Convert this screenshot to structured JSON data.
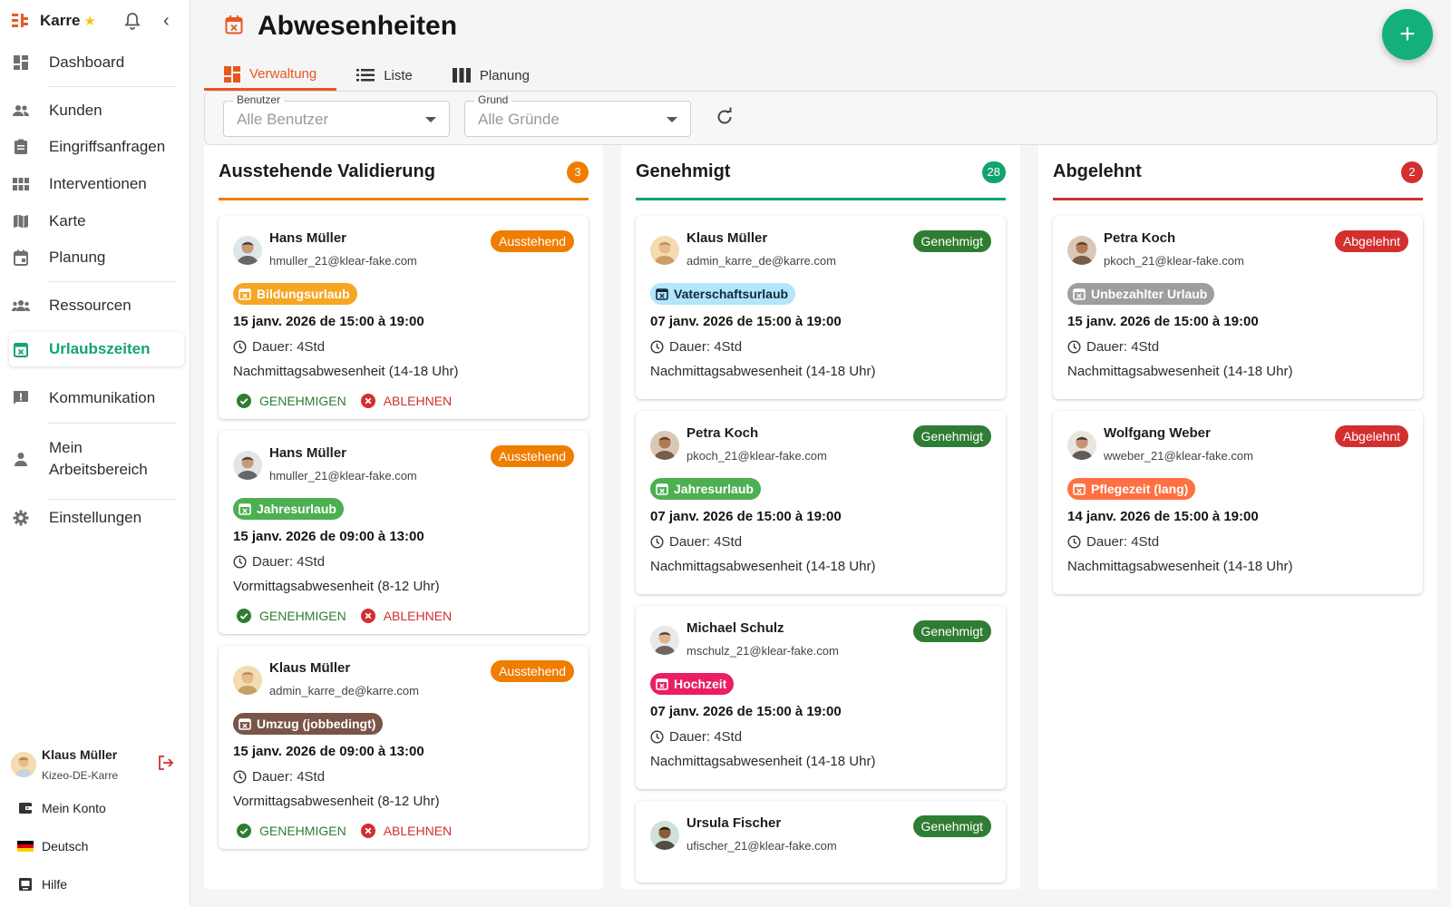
{
  "sidebar": {
    "brand": "Karre",
    "items": [
      {
        "label": "Dashboard"
      },
      {
        "label": "Kunden"
      },
      {
        "label": "Eingriffsanfragen"
      },
      {
        "label": "Interventionen"
      },
      {
        "label": "Karte"
      },
      {
        "label": "Planung"
      },
      {
        "label": "Ressourcen"
      },
      {
        "label": "Urlaubszeiten"
      },
      {
        "label": "Kommunikation"
      },
      {
        "label": "Mein Arbeitsbereich"
      },
      {
        "label": "Einstellungen"
      }
    ],
    "user": {
      "name": "Klaus Müller",
      "org": "Kizeo-DE-Karre"
    },
    "account_label": "Mein Konto",
    "language_label": "Deutsch",
    "help_label": "Hilfe"
  },
  "header": {
    "title": "Abwesenheiten",
    "tabs": [
      {
        "label": "Verwaltung",
        "active": true
      },
      {
        "label": "Liste",
        "active": false
      },
      {
        "label": "Planung",
        "active": false
      }
    ],
    "fab_symbol": "+"
  },
  "filters": {
    "user": {
      "label": "Benutzer",
      "value": "Alle Benutzer"
    },
    "reason": {
      "label": "Grund",
      "value": "Alle Gründe"
    }
  },
  "colors": {
    "pending": "#ef7d00",
    "approved": "#13a36f",
    "rejected": "#d32f2f",
    "approved_badge": "#2e7d32"
  },
  "columns": [
    {
      "title": "Ausstehende Validierung",
      "count": "3",
      "cards": [
        {
          "name": "Hans Müller",
          "email": "hmuller_21@klear-fake.com",
          "status": "Ausstehend",
          "reason": "Bildungsurlaub",
          "date": "15 janv. 2026 de 15:00 à 19:00",
          "duration": "Dauer: 4Std",
          "description": "Nachmittagsabwesenheit (14-18 Uhr)",
          "approve": "GENEHMIGEN",
          "reject": "ABLEHNEN"
        },
        {
          "name": "Hans Müller",
          "email": "hmuller_21@klear-fake.com",
          "status": "Ausstehend",
          "reason": "Jahresurlaub",
          "date": "15 janv. 2026 de 09:00 à 13:00",
          "duration": "Dauer: 4Std",
          "description": "Vormittagsabwesenheit (8-12 Uhr)",
          "approve": "GENEHMIGEN",
          "reject": "ABLEHNEN"
        },
        {
          "name": "Klaus Müller",
          "email": "admin_karre_de@karre.com",
          "status": "Ausstehend",
          "reason": "Umzug (jobbedingt)",
          "date": "15 janv. 2026 de 09:00 à 13:00",
          "duration": "Dauer: 4Std",
          "description": "Vormittagsabwesenheit (8-12 Uhr)",
          "approve": "GENEHMIGEN",
          "reject": "ABLEHNEN"
        }
      ]
    },
    {
      "title": "Genehmigt",
      "count": "28",
      "cards": [
        {
          "name": "Klaus Müller",
          "email": "admin_karre_de@karre.com",
          "status": "Genehmigt",
          "reason": "Vaterschaftsurlaub",
          "date": "07 janv. 2026 de 15:00 à 19:00",
          "duration": "Dauer: 4Std",
          "description": "Nachmittagsabwesenheit (14-18 Uhr)"
        },
        {
          "name": "Petra Koch",
          "email": "pkoch_21@klear-fake.com",
          "status": "Genehmigt",
          "reason": "Jahresurlaub",
          "date": "07 janv. 2026 de 15:00 à 19:00",
          "duration": "Dauer: 4Std",
          "description": "Nachmittagsabwesenheit (14-18 Uhr)"
        },
        {
          "name": "Michael Schulz",
          "email": "mschulz_21@klear-fake.com",
          "status": "Genehmigt",
          "reason": "Hochzeit",
          "date": "07 janv. 2026 de 15:00 à 19:00",
          "duration": "Dauer: 4Std",
          "description": "Nachmittagsabwesenheit (14-18 Uhr)"
        },
        {
          "name": "Ursula Fischer",
          "email": "ufischer_21@klear-fake.com",
          "status": "Genehmigt"
        }
      ]
    },
    {
      "title": "Abgelehnt",
      "count": "2",
      "cards": [
        {
          "name": "Petra Koch",
          "email": "pkoch_21@klear-fake.com",
          "status": "Abgelehnt",
          "reason": "Unbezahlter Urlaub",
          "date": "15 janv. 2026 de 15:00 à 19:00",
          "duration": "Dauer: 4Std",
          "description": "Nachmittagsabwesenheit (14-18 Uhr)"
        },
        {
          "name": "Wolfgang Weber",
          "email": "wweber_21@klear-fake.com",
          "status": "Abgelehnt",
          "reason": "Pflegezeit (lang)",
          "date": "14 janv. 2026 de 15:00 à 19:00",
          "duration": "Dauer: 4Std",
          "description": "Nachmittagsabwesenheit (14-18 Uhr)"
        }
      ]
    }
  ]
}
